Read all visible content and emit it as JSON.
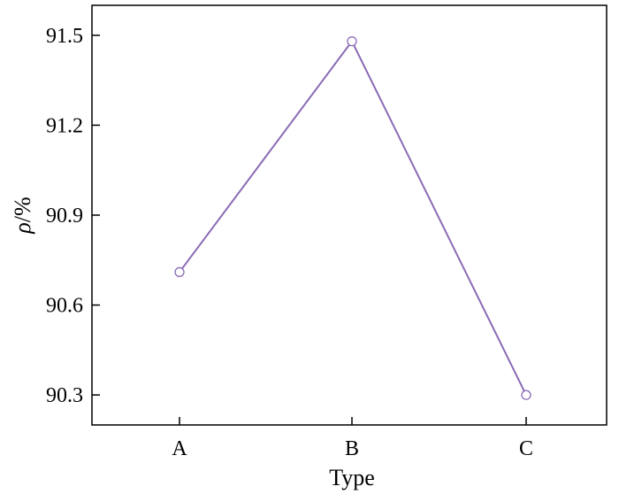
{
  "chart_data": {
    "type": "line",
    "categories": [
      "A",
      "B",
      "C"
    ],
    "series": [
      {
        "values": [
          90.71,
          91.48,
          90.3
        ],
        "color": "#8a6bb5"
      }
    ],
    "xlabel": "Type",
    "ylabel_symbol": "ρ",
    "ylabel_unit": "/%",
    "ylim": [
      90.2,
      91.6
    ],
    "yticks": [
      90.3,
      90.6,
      90.9,
      91.2,
      91.5
    ],
    "ytick_labels": [
      "90.3",
      "90.6",
      "90.9",
      "91.2",
      "91.5"
    ],
    "grid": false,
    "legend": "none",
    "marker": "open-circle"
  }
}
